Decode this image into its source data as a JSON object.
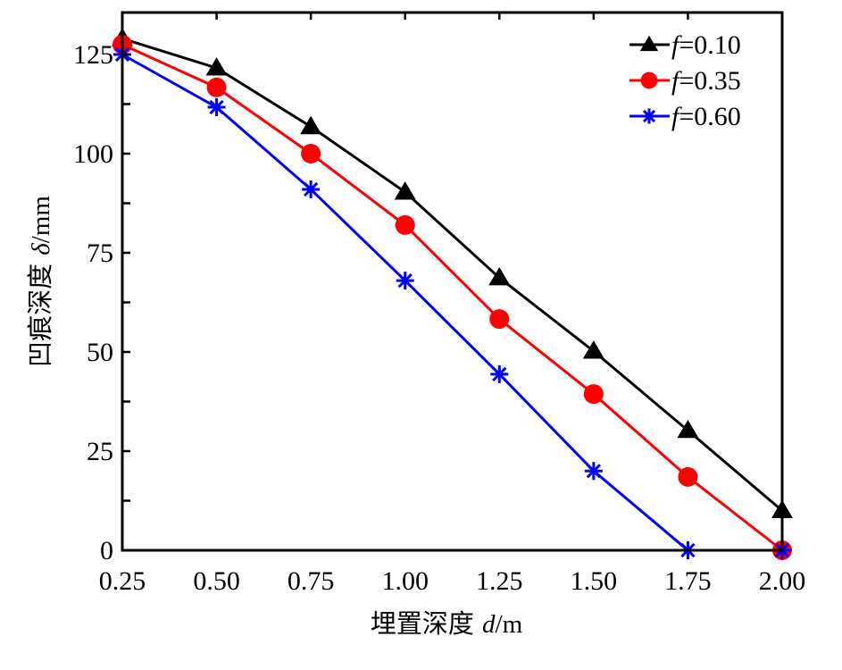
{
  "chart_data": {
    "type": "line",
    "title": "",
    "xlabel": "埋置深度 d/m",
    "xlabel_parts": {
      "prefix": "埋置深度 ",
      "var": "d",
      "suffix": "/m"
    },
    "ylabel": "凹痕深度 δ/mm",
    "ylabel_parts": {
      "prefix": "凹痕深度 ",
      "var": "δ",
      "suffix": "/mm"
    },
    "x": [
      0.25,
      0.5,
      0.75,
      1.0,
      1.25,
      1.5,
      1.75,
      2.0
    ],
    "x_tick_labels": [
      "0.25",
      "0.50",
      "0.75",
      "1.00",
      "1.25",
      "1.50",
      "1.75",
      "2.00"
    ],
    "y_ticks": [
      0,
      25,
      50,
      75,
      100,
      125
    ],
    "y_tick_labels": [
      "0",
      "25",
      "50",
      "75",
      "100",
      "125"
    ],
    "xlim": [
      0.25,
      2.0
    ],
    "ylim": [
      0,
      130
    ],
    "grid": false,
    "legend_position": "top-right",
    "series": [
      {
        "name": "f=0.10",
        "var": "f",
        "value_label": "=0.10",
        "marker": "triangle",
        "color": "#000000",
        "values": [
          129,
          121.6,
          106.8,
          90.3,
          68.7,
          50.2,
          30.2,
          10
        ]
      },
      {
        "name": "f=0.35",
        "var": "f",
        "value_label": "=0.35",
        "marker": "circle",
        "color": "#ff0000",
        "values": [
          127.5,
          116.7,
          100,
          82,
          58.3,
          39.4,
          18.5,
          0
        ]
      },
      {
        "name": "f=0.60",
        "var": "f",
        "value_label": "=0.60",
        "marker": "asterisk",
        "color": "#0000ff",
        "values": [
          125,
          111.7,
          91,
          68,
          44.4,
          20,
          0,
          0
        ]
      }
    ]
  }
}
